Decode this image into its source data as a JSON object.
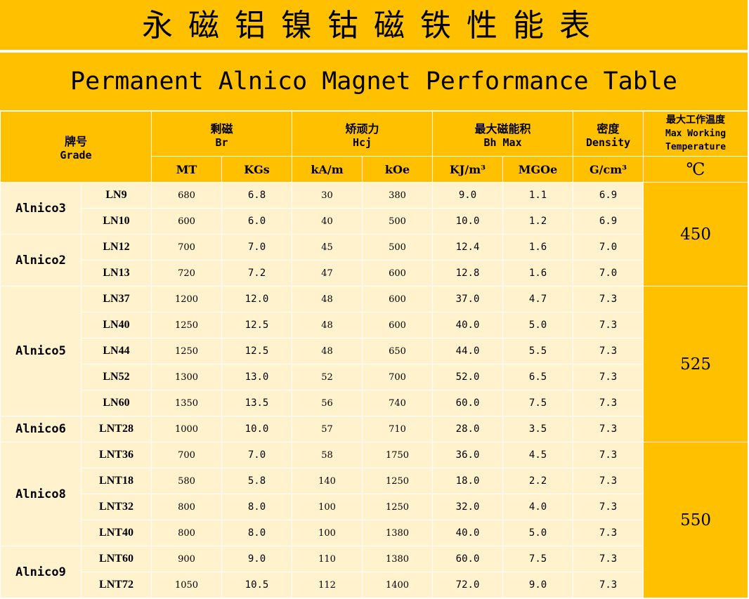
{
  "title_zh": "永磁铝镍钴磁铁性能表",
  "title_en": "Permanent Alnico Magnet Performance Table",
  "header": {
    "grade_zh": "牌号",
    "grade_en": "Grade",
    "br_zh": "剩磁",
    "br_en": "Br",
    "hcj_zh": "矫顽力",
    "hcj_en": "Hcj",
    "bh_zh": "最大磁能积",
    "bh_en": "Bh Max",
    "density_zh": "密度",
    "density_en": "Density",
    "temp_zh": "最大工作温度",
    "temp_en1": "Max Working",
    "temp_en2": "Temperature",
    "units": [
      "MT",
      "KGs",
      "kA/m",
      "kOe",
      "KJ/m³",
      "MGOe",
      "G/cm³"
    ],
    "temp_unit": "℃"
  },
  "series": [
    "Alnico3",
    "Alnico2",
    "Alnico5",
    "Alnico6",
    "Alnico8",
    "Alnico9"
  ],
  "temperatures": [
    "450",
    "525",
    "550"
  ],
  "rows": [
    {
      "grade": "LN9",
      "mt": "680",
      "kgs": "6.8",
      "kam": "30",
      "koe": "380",
      "kj": "9.0",
      "mgoe": "1.1",
      "density": "6.9"
    },
    {
      "grade": "LN10",
      "mt": "600",
      "kgs": "6.0",
      "kam": "40",
      "koe": "500",
      "kj": "10.0",
      "mgoe": "1.2",
      "density": "6.9"
    },
    {
      "grade": "LN12",
      "mt": "700",
      "kgs": "7.0",
      "kam": "45",
      "koe": "500",
      "kj": "12.4",
      "mgoe": "1.6",
      "density": "7.0"
    },
    {
      "grade": "LN13",
      "mt": "720",
      "kgs": "7.2",
      "kam": "47",
      "koe": "600",
      "kj": "12.8",
      "mgoe": "1.6",
      "density": "7.0"
    },
    {
      "grade": "LN37",
      "mt": "1200",
      "kgs": "12.0",
      "kam": "48",
      "koe": "600",
      "kj": "37.0",
      "mgoe": "4.7",
      "density": "7.3"
    },
    {
      "grade": "LN40",
      "mt": "1250",
      "kgs": "12.5",
      "kam": "48",
      "koe": "600",
      "kj": "40.0",
      "mgoe": "5.0",
      "density": "7.3"
    },
    {
      "grade": "LN44",
      "mt": "1250",
      "kgs": "12.5",
      "kam": "48",
      "koe": "650",
      "kj": "44.0",
      "mgoe": "5.5",
      "density": "7.3"
    },
    {
      "grade": "LN52",
      "mt": "1300",
      "kgs": "13.0",
      "kam": "52",
      "koe": "700",
      "kj": "52.0",
      "mgoe": "6.5",
      "density": "7.3"
    },
    {
      "grade": "LN60",
      "mt": "1350",
      "kgs": "13.5",
      "kam": "56",
      "koe": "740",
      "kj": "60.0",
      "mgoe": "7.5",
      "density": "7.3"
    },
    {
      "grade": "LNT28",
      "mt": "1000",
      "kgs": "10.0",
      "kam": "57",
      "koe": "710",
      "kj": "28.0",
      "mgoe": "3.5",
      "density": "7.3"
    },
    {
      "grade": "LNT36",
      "mt": "700",
      "kgs": "7.0",
      "kam": "58",
      "koe": "1750",
      "kj": "36.0",
      "mgoe": "4.5",
      "density": "7.3"
    },
    {
      "grade": "LNT18",
      "mt": "580",
      "kgs": "5.8",
      "kam": "140",
      "koe": "1250",
      "kj": "18.0",
      "mgoe": "2.2",
      "density": "7.3"
    },
    {
      "grade": "LNT32",
      "mt": "800",
      "kgs": "8.0",
      "kam": "100",
      "koe": "1250",
      "kj": "32.0",
      "mgoe": "4.0",
      "density": "7.3"
    },
    {
      "grade": "LNT40",
      "mt": "800",
      "kgs": "8.0",
      "kam": "100",
      "koe": "1380",
      "kj": "40.0",
      "mgoe": "5.0",
      "density": "7.3"
    },
    {
      "grade": "LNT60",
      "mt": "900",
      "kgs": "9.0",
      "kam": "110",
      "koe": "1380",
      "kj": "60.0",
      "mgoe": "7.5",
      "density": "7.3"
    },
    {
      "grade": "LNT72",
      "mt": "1050",
      "kgs": "10.5",
      "kam": "112",
      "koe": "1400",
      "kj": "72.0",
      "mgoe": "9.0",
      "density": "7.3"
    }
  ]
}
